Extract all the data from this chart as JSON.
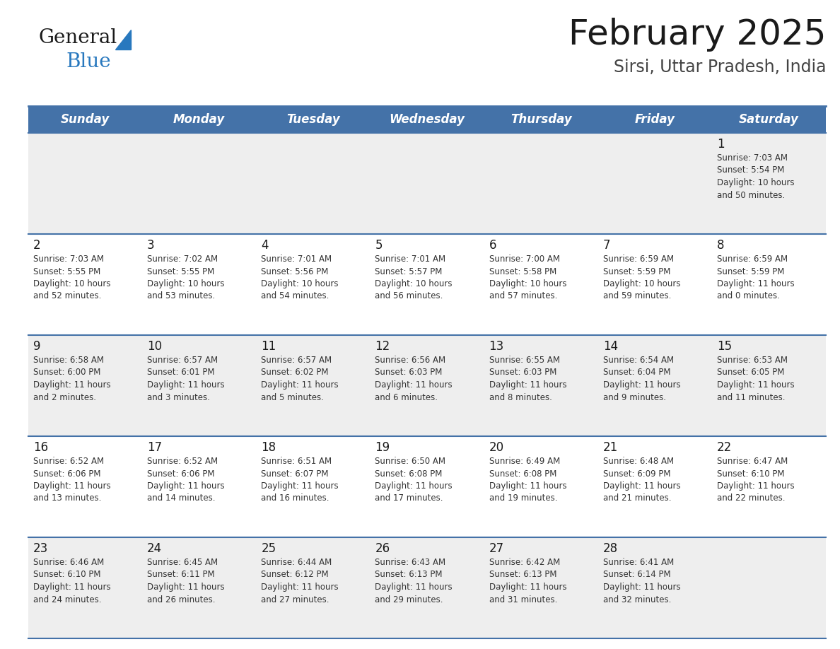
{
  "title": "February 2025",
  "subtitle": "Sirsi, Uttar Pradesh, India",
  "header_bg_color": "#4472a8",
  "header_text_color": "#ffffff",
  "day_names": [
    "Sunday",
    "Monday",
    "Tuesday",
    "Wednesday",
    "Thursday",
    "Friday",
    "Saturday"
  ],
  "title_color": "#1a1a1a",
  "subtitle_color": "#444444",
  "cell_bg_light": "#eeeeee",
  "cell_bg_white": "#ffffff",
  "cell_border_color": "#4472a8",
  "day_num_color": "#1a1a1a",
  "info_text_color": "#333333",
  "logo_general_color": "#1a1a1a",
  "logo_blue_color": "#2878be",
  "days_data": [
    {
      "day": 1,
      "col": 6,
      "row": 0,
      "sunrise": "7:03 AM",
      "sunset": "5:54 PM",
      "daylight": "10 hours\nand 50 minutes."
    },
    {
      "day": 2,
      "col": 0,
      "row": 1,
      "sunrise": "7:03 AM",
      "sunset": "5:55 PM",
      "daylight": "10 hours\nand 52 minutes."
    },
    {
      "day": 3,
      "col": 1,
      "row": 1,
      "sunrise": "7:02 AM",
      "sunset": "5:55 PM",
      "daylight": "10 hours\nand 53 minutes."
    },
    {
      "day": 4,
      "col": 2,
      "row": 1,
      "sunrise": "7:01 AM",
      "sunset": "5:56 PM",
      "daylight": "10 hours\nand 54 minutes."
    },
    {
      "day": 5,
      "col": 3,
      "row": 1,
      "sunrise": "7:01 AM",
      "sunset": "5:57 PM",
      "daylight": "10 hours\nand 56 minutes."
    },
    {
      "day": 6,
      "col": 4,
      "row": 1,
      "sunrise": "7:00 AM",
      "sunset": "5:58 PM",
      "daylight": "10 hours\nand 57 minutes."
    },
    {
      "day": 7,
      "col": 5,
      "row": 1,
      "sunrise": "6:59 AM",
      "sunset": "5:59 PM",
      "daylight": "10 hours\nand 59 minutes."
    },
    {
      "day": 8,
      "col": 6,
      "row": 1,
      "sunrise": "6:59 AM",
      "sunset": "5:59 PM",
      "daylight": "11 hours\nand 0 minutes."
    },
    {
      "day": 9,
      "col": 0,
      "row": 2,
      "sunrise": "6:58 AM",
      "sunset": "6:00 PM",
      "daylight": "11 hours\nand 2 minutes."
    },
    {
      "day": 10,
      "col": 1,
      "row": 2,
      "sunrise": "6:57 AM",
      "sunset": "6:01 PM",
      "daylight": "11 hours\nand 3 minutes."
    },
    {
      "day": 11,
      "col": 2,
      "row": 2,
      "sunrise": "6:57 AM",
      "sunset": "6:02 PM",
      "daylight": "11 hours\nand 5 minutes."
    },
    {
      "day": 12,
      "col": 3,
      "row": 2,
      "sunrise": "6:56 AM",
      "sunset": "6:03 PM",
      "daylight": "11 hours\nand 6 minutes."
    },
    {
      "day": 13,
      "col": 4,
      "row": 2,
      "sunrise": "6:55 AM",
      "sunset": "6:03 PM",
      "daylight": "11 hours\nand 8 minutes."
    },
    {
      "day": 14,
      "col": 5,
      "row": 2,
      "sunrise": "6:54 AM",
      "sunset": "6:04 PM",
      "daylight": "11 hours\nand 9 minutes."
    },
    {
      "day": 15,
      "col": 6,
      "row": 2,
      "sunrise": "6:53 AM",
      "sunset": "6:05 PM",
      "daylight": "11 hours\nand 11 minutes."
    },
    {
      "day": 16,
      "col": 0,
      "row": 3,
      "sunrise": "6:52 AM",
      "sunset": "6:06 PM",
      "daylight": "11 hours\nand 13 minutes."
    },
    {
      "day": 17,
      "col": 1,
      "row": 3,
      "sunrise": "6:52 AM",
      "sunset": "6:06 PM",
      "daylight": "11 hours\nand 14 minutes."
    },
    {
      "day": 18,
      "col": 2,
      "row": 3,
      "sunrise": "6:51 AM",
      "sunset": "6:07 PM",
      "daylight": "11 hours\nand 16 minutes."
    },
    {
      "day": 19,
      "col": 3,
      "row": 3,
      "sunrise": "6:50 AM",
      "sunset": "6:08 PM",
      "daylight": "11 hours\nand 17 minutes."
    },
    {
      "day": 20,
      "col": 4,
      "row": 3,
      "sunrise": "6:49 AM",
      "sunset": "6:08 PM",
      "daylight": "11 hours\nand 19 minutes."
    },
    {
      "day": 21,
      "col": 5,
      "row": 3,
      "sunrise": "6:48 AM",
      "sunset": "6:09 PM",
      "daylight": "11 hours\nand 21 minutes."
    },
    {
      "day": 22,
      "col": 6,
      "row": 3,
      "sunrise": "6:47 AM",
      "sunset": "6:10 PM",
      "daylight": "11 hours\nand 22 minutes."
    },
    {
      "day": 23,
      "col": 0,
      "row": 4,
      "sunrise": "6:46 AM",
      "sunset": "6:10 PM",
      "daylight": "11 hours\nand 24 minutes."
    },
    {
      "day": 24,
      "col": 1,
      "row": 4,
      "sunrise": "6:45 AM",
      "sunset": "6:11 PM",
      "daylight": "11 hours\nand 26 minutes."
    },
    {
      "day": 25,
      "col": 2,
      "row": 4,
      "sunrise": "6:44 AM",
      "sunset": "6:12 PM",
      "daylight": "11 hours\nand 27 minutes."
    },
    {
      "day": 26,
      "col": 3,
      "row": 4,
      "sunrise": "6:43 AM",
      "sunset": "6:13 PM",
      "daylight": "11 hours\nand 29 minutes."
    },
    {
      "day": 27,
      "col": 4,
      "row": 4,
      "sunrise": "6:42 AM",
      "sunset": "6:13 PM",
      "daylight": "11 hours\nand 31 minutes."
    },
    {
      "day": 28,
      "col": 5,
      "row": 4,
      "sunrise": "6:41 AM",
      "sunset": "6:14 PM",
      "daylight": "11 hours\nand 32 minutes."
    }
  ]
}
